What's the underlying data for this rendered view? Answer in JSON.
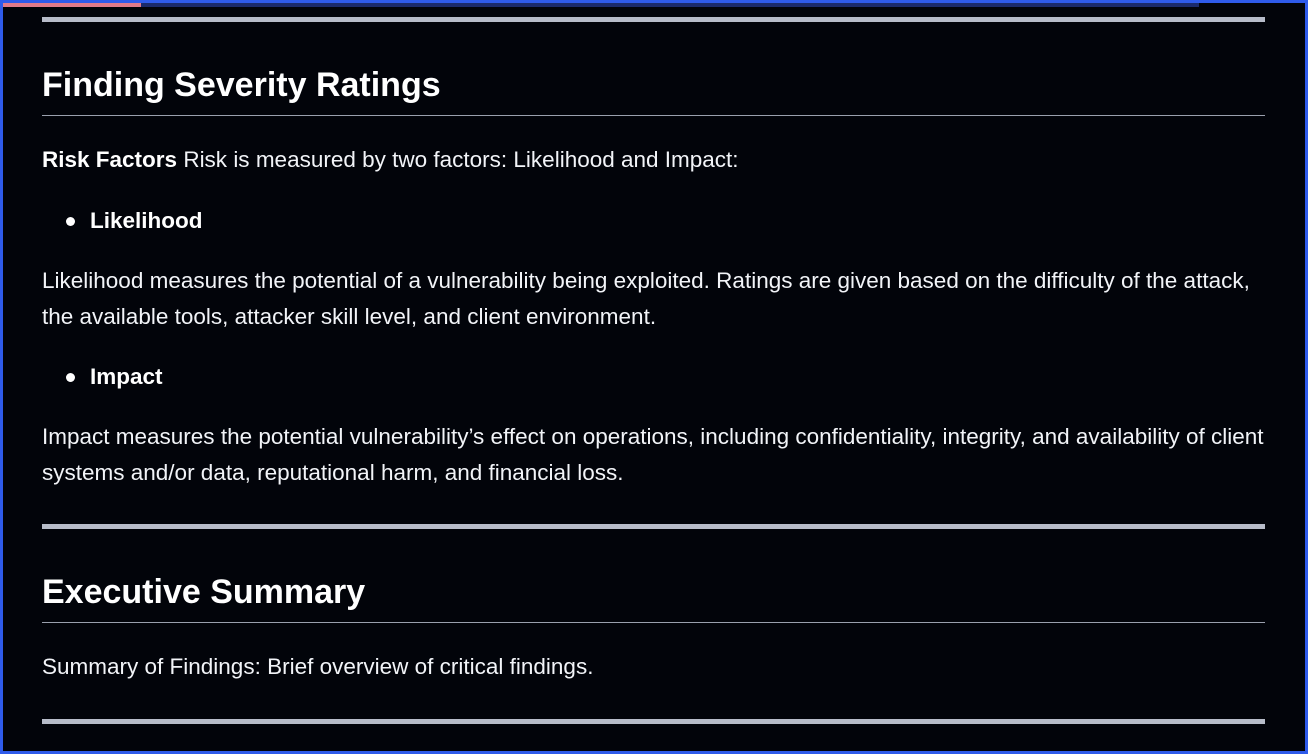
{
  "theme": {
    "background": "#02040a",
    "border": "#2f5bea",
    "text": "#f2f4f8",
    "rule": "#b7bcc9",
    "progress_fill": "#e07a8a"
  },
  "scroll_progress": 0.115,
  "sections": {
    "severity": {
      "title": "Finding Severity Ratings",
      "risk_factors_label": "Risk Factors",
      "risk_factors_text": " Risk is measured by two factors: Likelihood and Impact:",
      "likelihood_label": "Likelihood",
      "likelihood_text": "Likelihood measures the potential of a vulnerability being exploited. Ratings are given based on the difficulty of the attack, the available tools, attacker skill level, and client environment.",
      "impact_label": "Impact",
      "impact_text": "Impact measures the potential vulnerability’s effect on operations, including confidentiality, integrity, and availability of client systems and/or data, reputational harm, and financial loss."
    },
    "executive_summary": {
      "title": "Executive Summary",
      "text": "Summary of Findings: Brief overview of critical findings."
    }
  }
}
